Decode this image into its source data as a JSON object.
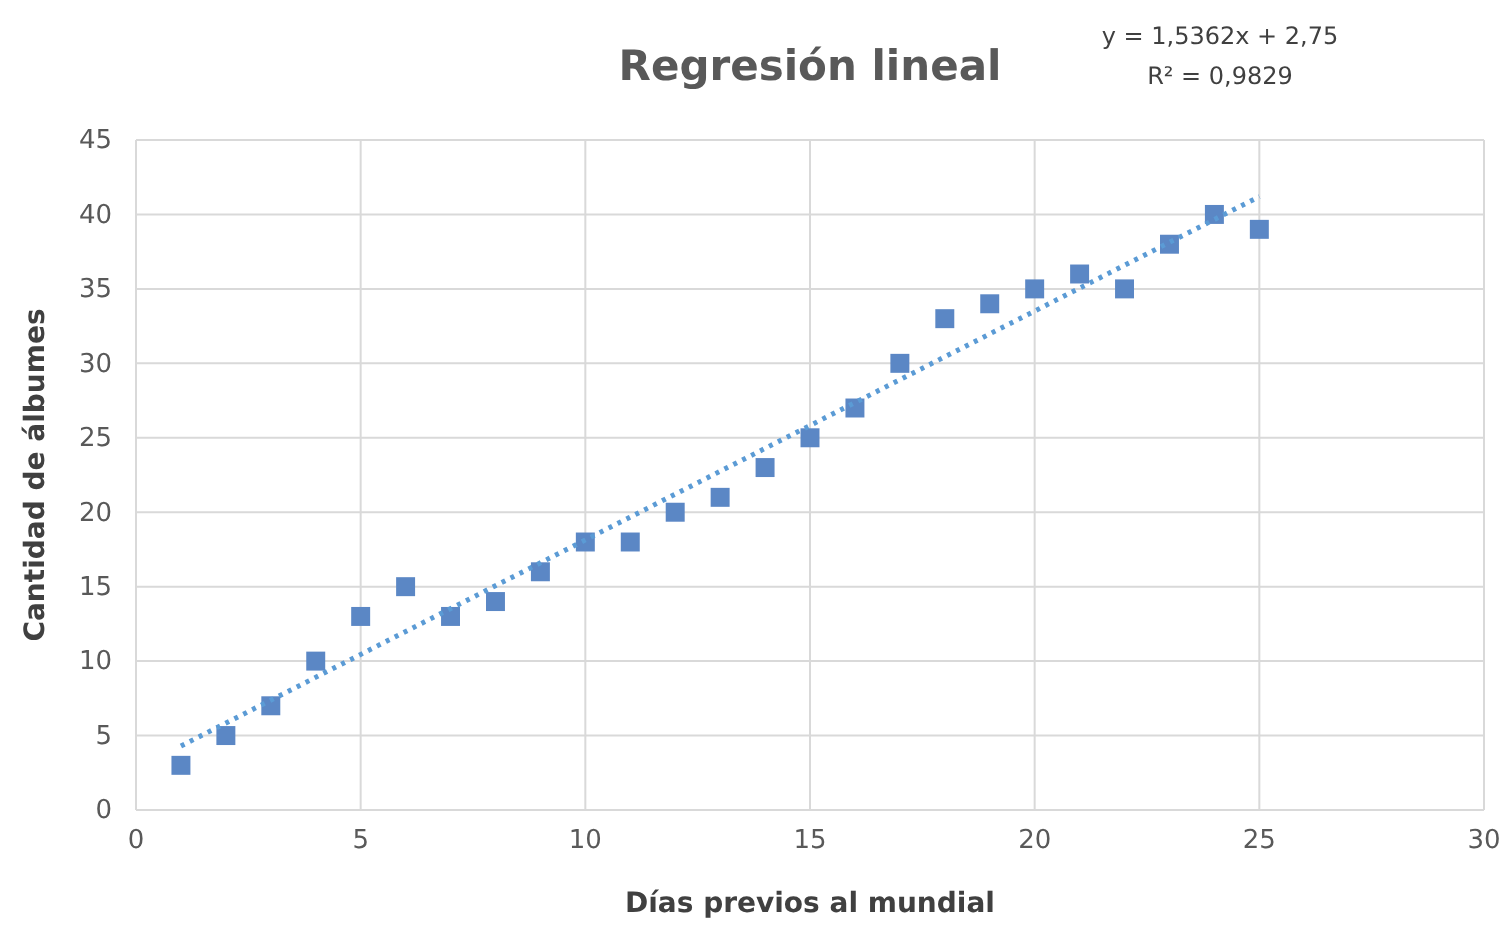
{
  "chart_data": {
    "type": "scatter",
    "title": "Regresión lineal",
    "xlabel": "Días previos al mundial",
    "ylabel": "Cantidad de álbumes",
    "annotations": [
      "y = 1,5362x + 2,75",
      "R² = 0,9829"
    ],
    "series": [
      {
        "color": "#5b87c5",
        "marker": "square",
        "x": [
          1,
          2,
          3,
          4,
          5,
          6,
          7,
          8,
          9,
          10,
          11,
          12,
          13,
          14,
          15,
          16,
          17,
          18,
          19,
          20,
          21,
          22,
          23,
          24,
          25
        ],
        "values": [
          3,
          5,
          7,
          10,
          13,
          15,
          13,
          14,
          16,
          18,
          18,
          20,
          21,
          23,
          25,
          27,
          30,
          33,
          34,
          35,
          36,
          35,
          38,
          40,
          39
        ]
      },
      {
        "type": "line",
        "color": "#5b9bd5",
        "line_style": "dotted",
        "x": [
          1,
          25
        ],
        "values": [
          4.3,
          41.2
        ]
      }
    ],
    "xlim": [
      0,
      30
    ],
    "xticks": [
      0,
      5,
      10,
      15,
      20,
      25,
      30
    ],
    "ylim": [
      0,
      45
    ],
    "yticks": [
      0,
      5,
      10,
      15,
      20,
      25,
      30,
      35,
      40,
      45
    ],
    "grid": true
  }
}
